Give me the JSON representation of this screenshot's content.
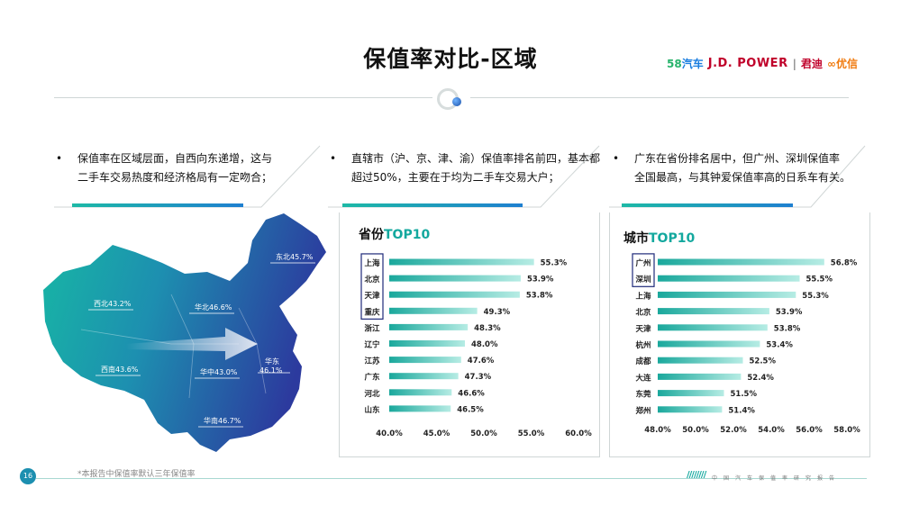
{
  "title": "保值率对比-区域",
  "logos": {
    "l58_num": "58",
    "l58_text": "汽车",
    "jd": "J.D. POWER",
    "jd_cn": "君迪",
    "youxin": "优信"
  },
  "bullets": [
    {
      "dot": "•",
      "text": "保值率在区域层面，自西向东递增，这与\n二手车交易热度和经济格局有一定吻合；"
    },
    {
      "dot": "•",
      "text": "直辖市（沪、京、津、渝）保值率排名前四，基本都\n超过50%，主要在于均为二手车交易大户；"
    },
    {
      "dot": "•",
      "text": "广东在省份排名居中，但广州、深圳保值率\n全国最高，与其钟爱保值率高的日系车有关。"
    }
  ],
  "map": {
    "regions": [
      {
        "label": "东北45.7%"
      },
      {
        "label": "西北43.2%"
      },
      {
        "label": "华北46.6%"
      },
      {
        "label": "西南43.6%"
      },
      {
        "label": "华中43.0%"
      },
      {
        "label": "华东\n46.1%"
      },
      {
        "label": "华南46.7%"
      }
    ],
    "colors": {
      "west": "#17b8a4",
      "east": "#2c3a9e"
    }
  },
  "chart_data": [
    {
      "type": "bar",
      "orientation": "horizontal",
      "title_main": "省份",
      "title_hl": "TOP10",
      "categories": [
        "上海",
        "北京",
        "天津",
        "重庆",
        "浙江",
        "辽宁",
        "江苏",
        "广东",
        "河北",
        "山东"
      ],
      "values": [
        55.3,
        53.9,
        53.8,
        49.3,
        48.3,
        48.0,
        47.6,
        47.3,
        46.6,
        46.5
      ],
      "value_labels": [
        "55.3%",
        "53.9%",
        "53.8%",
        "49.3%",
        "48.3%",
        "48.0%",
        "47.6%",
        "47.3%",
        "46.6%",
        "46.5%"
      ],
      "xlim": [
        40,
        60
      ],
      "ticks": [
        40,
        45,
        50,
        55,
        60
      ],
      "tick_labels": [
        "40.0%",
        "45.0%",
        "50.0%",
        "55.0%",
        "60.0%"
      ],
      "boxed_categories": [
        "上海",
        "北京",
        "天津",
        "重庆"
      ],
      "bar_color_start": "#1aa89c",
      "bar_color_end": "#b6ece4"
    },
    {
      "type": "bar",
      "orientation": "horizontal",
      "title_main": "城市",
      "title_hl": "TOP10",
      "categories": [
        "广州",
        "深圳",
        "上海",
        "北京",
        "天津",
        "杭州",
        "成都",
        "大连",
        "东莞",
        "郑州"
      ],
      "values": [
        56.8,
        55.5,
        55.3,
        53.9,
        53.8,
        53.4,
        52.5,
        52.4,
        51.5,
        51.4
      ],
      "value_labels": [
        "56.8%",
        "55.5%",
        "55.3%",
        "53.9%",
        "53.8%",
        "53.4%",
        "52.5%",
        "52.4%",
        "51.5%",
        "51.4%"
      ],
      "xlim": [
        48,
        58
      ],
      "ticks": [
        48,
        50,
        52,
        54,
        56,
        58
      ],
      "tick_labels": [
        "48.0%",
        "50.0%",
        "52.0%",
        "54.0%",
        "56.0%",
        "58.0%"
      ],
      "boxed_categories": [
        "广州",
        "深圳"
      ],
      "bar_color_start": "#1aa89c",
      "bar_color_end": "#b6ece4"
    }
  ],
  "footnote": "*本报告中保值率默认三年保值率",
  "page_number": "16",
  "footer_slogan": "中国汽车保值率研究报告",
  "footer_slash": "////////"
}
